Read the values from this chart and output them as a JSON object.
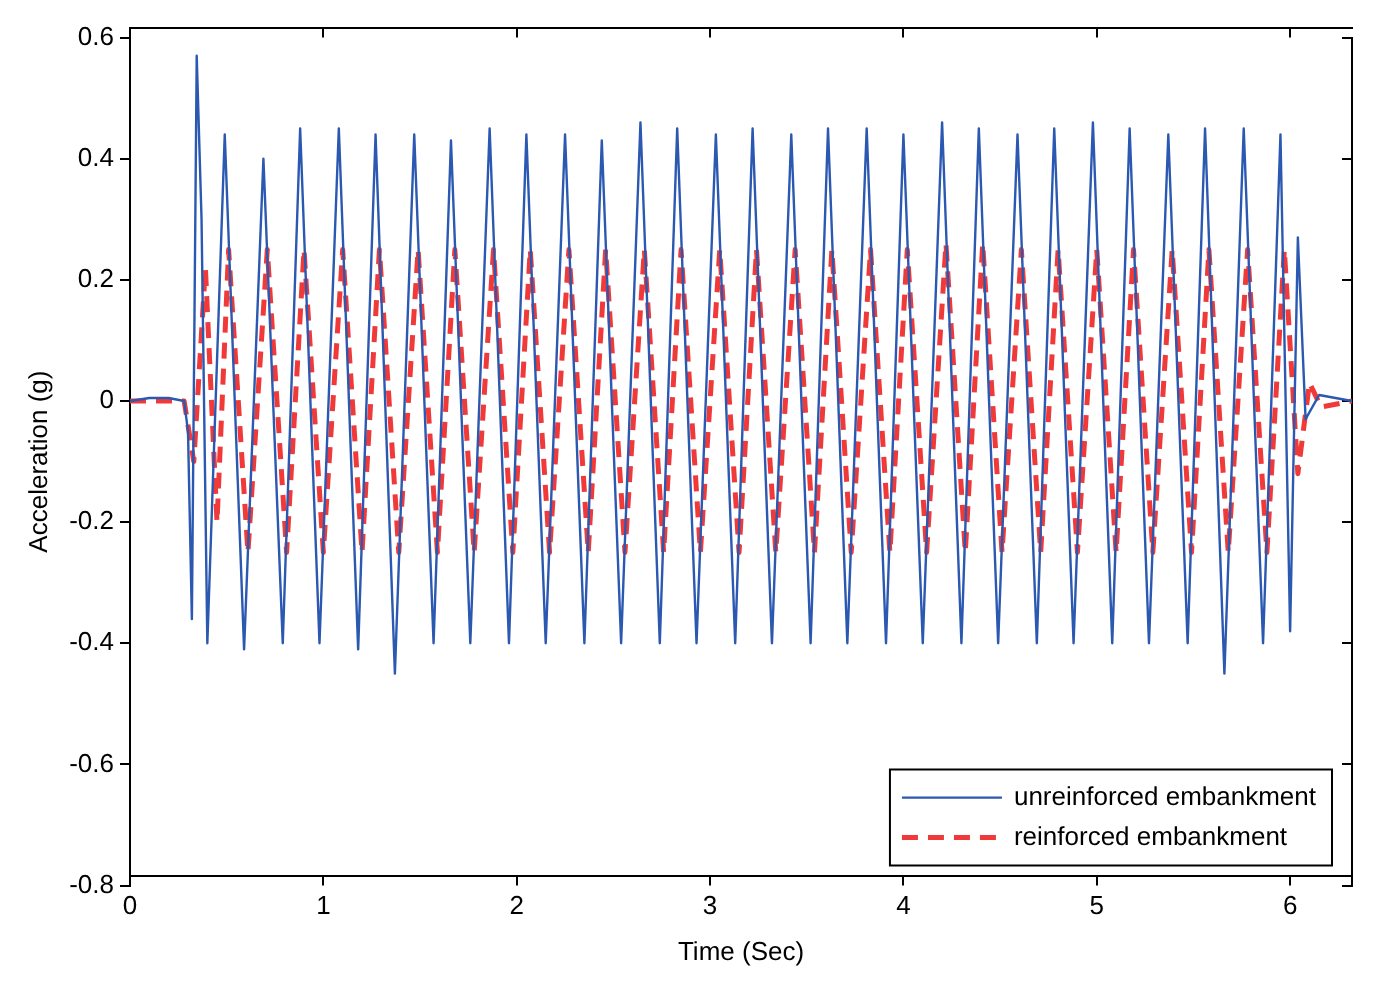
{
  "chart_data": {
    "type": "line",
    "xlabel": "Time (Sec)",
    "ylabel": "Acceleration (g)",
    "xlim": [
      0,
      6.32
    ],
    "ylim": [
      -0.8,
      0.6
    ],
    "xticks": [
      0,
      1,
      2,
      3,
      4,
      5,
      6
    ],
    "yticks": [
      -0.8,
      -0.6,
      -0.4,
      -0.2,
      0,
      0.2,
      0.4,
      0.6
    ],
    "grid": false,
    "legend": "bottom right",
    "marker": "none",
    "series": [
      {
        "name": "unreinforced embankment",
        "color": "#2b58b0",
        "line_style": "solid",
        "x": [
          0,
          0.1,
          0.2,
          0.28,
          0.3,
          0.32,
          0.345,
          0.37,
          0.4,
          0.49,
          0.59,
          0.69,
          0.79,
          0.88,
          0.98,
          1.08,
          1.18,
          1.27,
          1.37,
          1.47,
          1.57,
          1.66,
          1.76,
          1.86,
          1.96,
          2.05,
          2.15,
          2.25,
          2.35,
          2.44,
          2.54,
          2.64,
          2.74,
          2.83,
          2.93,
          3.03,
          3.13,
          3.22,
          3.32,
          3.42,
          3.52,
          3.61,
          3.71,
          3.81,
          3.91,
          4.0,
          4.1,
          4.2,
          4.3,
          4.39,
          4.49,
          4.59,
          4.69,
          4.78,
          4.88,
          4.98,
          5.08,
          5.17,
          5.27,
          5.37,
          5.47,
          5.56,
          5.66,
          5.76,
          5.86,
          5.95,
          6.0,
          6.04,
          6.08,
          6.15,
          6.32
        ],
        "values": [
          0,
          0.005,
          0.005,
          0,
          -0.05,
          -0.36,
          0.57,
          0.3,
          -0.4,
          0.44,
          -0.41,
          0.4,
          -0.4,
          0.45,
          -0.4,
          0.45,
          -0.41,
          0.44,
          -0.45,
          0.44,
          -0.4,
          0.43,
          -0.4,
          0.45,
          -0.4,
          0.44,
          -0.4,
          0.44,
          -0.4,
          0.43,
          -0.4,
          0.46,
          -0.4,
          0.45,
          -0.4,
          0.44,
          -0.4,
          0.45,
          -0.4,
          0.44,
          -0.4,
          0.45,
          -0.4,
          0.45,
          -0.4,
          0.44,
          -0.4,
          0.46,
          -0.4,
          0.45,
          -0.4,
          0.44,
          -0.4,
          0.45,
          -0.4,
          0.46,
          -0.4,
          0.45,
          -0.4,
          0.44,
          -0.4,
          0.45,
          -0.45,
          0.45,
          -0.4,
          0.44,
          -0.38,
          0.27,
          -0.03,
          0.01,
          0
        ]
      },
      {
        "name": "reinforced embankment",
        "color": "#f03a3a",
        "line_style": "dashed",
        "x": [
          0,
          0.28,
          0.33,
          0.39,
          0.45,
          0.51,
          0.61,
          0.71,
          0.81,
          0.9,
          1.0,
          1.1,
          1.2,
          1.29,
          1.39,
          1.49,
          1.59,
          1.68,
          1.78,
          1.88,
          1.98,
          2.07,
          2.17,
          2.27,
          2.37,
          2.46,
          2.56,
          2.66,
          2.76,
          2.85,
          2.95,
          3.05,
          3.15,
          3.24,
          3.34,
          3.44,
          3.54,
          3.63,
          3.73,
          3.83,
          3.93,
          4.02,
          4.12,
          4.22,
          4.32,
          4.41,
          4.51,
          4.61,
          4.71,
          4.8,
          4.9,
          5.0,
          5.1,
          5.19,
          5.29,
          5.39,
          5.49,
          5.58,
          5.68,
          5.78,
          5.88,
          5.97,
          6.04,
          6.1,
          6.16,
          6.32
        ],
        "values": [
          0,
          0,
          -0.1,
          0.22,
          -0.2,
          0.25,
          -0.25,
          0.25,
          -0.25,
          0.25,
          -0.25,
          0.25,
          -0.25,
          0.25,
          -0.25,
          0.25,
          -0.25,
          0.25,
          -0.25,
          0.25,
          -0.25,
          0.25,
          -0.25,
          0.25,
          -0.25,
          0.25,
          -0.25,
          0.25,
          -0.25,
          0.25,
          -0.25,
          0.25,
          -0.25,
          0.25,
          -0.25,
          0.25,
          -0.25,
          0.25,
          -0.25,
          0.25,
          -0.25,
          0.25,
          -0.25,
          0.26,
          -0.25,
          0.26,
          -0.25,
          0.25,
          -0.25,
          0.25,
          -0.25,
          0.25,
          -0.25,
          0.25,
          -0.25,
          0.25,
          -0.25,
          0.25,
          -0.25,
          0.25,
          -0.25,
          0.25,
          -0.12,
          0.03,
          -0.01,
          0
        ]
      }
    ]
  }
}
